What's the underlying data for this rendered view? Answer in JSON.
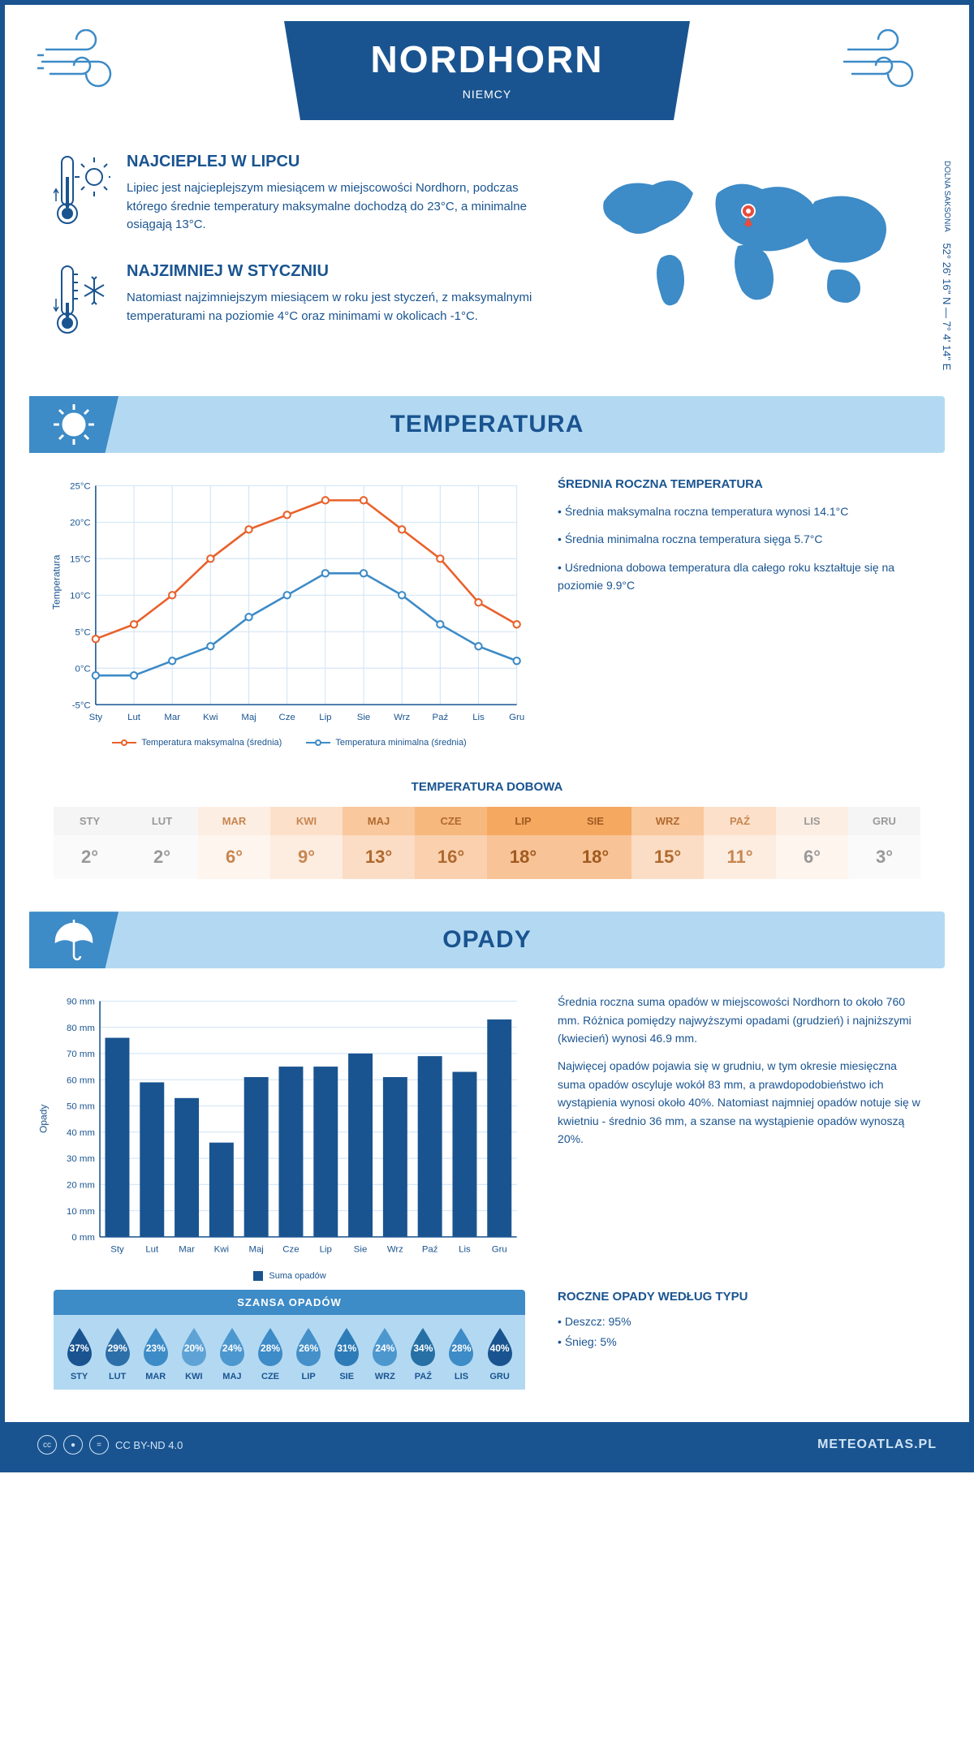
{
  "header": {
    "city": "NORDHORN",
    "country": "NIEMCY"
  },
  "coords": {
    "region": "DOLNA SAKSONIA",
    "lat": "52° 26' 16\" N",
    "lon": "7° 4' 14\" E"
  },
  "warmest": {
    "title": "NAJCIEPLEJ W LIPCU",
    "text": "Lipiec jest najcieplejszym miesiącem w miejscowości Nordhorn, podczas którego średnie temperatury maksymalne dochodzą do 23°C, a minimalne osiągają 13°C."
  },
  "coldest": {
    "title": "NAJZIMNIEJ W STYCZNIU",
    "text": "Natomiast najzimniejszym miesiącem w roku jest styczeń, z maksymalnymi temperaturami na poziomie 4°C oraz minimami w okolicach -1°C."
  },
  "temp_section_title": "TEMPERATURA",
  "temp_chart": {
    "months": [
      "Sty",
      "Lut",
      "Mar",
      "Kwi",
      "Maj",
      "Cze",
      "Lip",
      "Sie",
      "Wrz",
      "Paź",
      "Lis",
      "Gru"
    ],
    "max": [
      4,
      6,
      10,
      15,
      19,
      21,
      23,
      23,
      19,
      15,
      9,
      6
    ],
    "min": [
      -1,
      -1,
      1,
      3,
      7,
      10,
      13,
      13,
      10,
      6,
      3,
      1
    ],
    "max_color": "#e8622c",
    "min_color": "#3d8bc7",
    "ylabel": "Temperatura",
    "ymin": -5,
    "ymax": 25,
    "ystep": 5,
    "legend_max": "Temperatura maksymalna (średnia)",
    "legend_min": "Temperatura minimalna (średnia)",
    "grid_color": "#d0e4f5"
  },
  "temp_summary": {
    "title": "ŚREDNIA ROCZNA TEMPERATURA",
    "p1": "• Średnia maksymalna roczna temperatura wynosi 14.1°C",
    "p2": "• Średnia minimalna roczna temperatura sięga 5.7°C",
    "p3": "• Uśredniona dobowa temperatura dla całego roku kształtuje się na poziomie 9.9°C"
  },
  "daily": {
    "title": "TEMPERATURA DOBOWA",
    "months": [
      "STY",
      "LUT",
      "MAR",
      "KWI",
      "MAJ",
      "CZE",
      "LIP",
      "SIE",
      "WRZ",
      "PAŹ",
      "LIS",
      "GRU"
    ],
    "values": [
      "2°",
      "2°",
      "6°",
      "9°",
      "13°",
      "16°",
      "18°",
      "18°",
      "15°",
      "11°",
      "6°",
      "3°"
    ],
    "bg_colors": [
      "#f5f5f5",
      "#f5f5f5",
      "#fdeee3",
      "#fce0ca",
      "#f9c89d",
      "#f7b87e",
      "#f5a860",
      "#f5a860",
      "#f9c89d",
      "#fce0ca",
      "#fdeee3",
      "#f5f5f5"
    ],
    "val_bg_colors": [
      "#fafafa",
      "#fafafa",
      "#fef5ee",
      "#fdece0",
      "#fbdcc4",
      "#fad0ae",
      "#f8c397",
      "#f8c397",
      "#fbdcc4",
      "#fdece0",
      "#fef5ee",
      "#fafafa"
    ],
    "text_colors": [
      "#999",
      "#999",
      "#c78650",
      "#c78650",
      "#b06a2f",
      "#b06a2f",
      "#a05a1f",
      "#a05a1f",
      "#b06a2f",
      "#c78650",
      "#999",
      "#999"
    ]
  },
  "precip_section_title": "OPADY",
  "precip_chart": {
    "months": [
      "Sty",
      "Lut",
      "Mar",
      "Kwi",
      "Maj",
      "Cze",
      "Lip",
      "Sie",
      "Wrz",
      "Paź",
      "Lis",
      "Gru"
    ],
    "values": [
      76,
      59,
      53,
      36,
      61,
      65,
      65,
      70,
      61,
      69,
      63,
      83
    ],
    "color": "#1a5490",
    "ylabel": "Opady",
    "ymin": 0,
    "ymax": 90,
    "ystep": 10,
    "legend": "Suma opadów",
    "grid_color": "#d0e4f5"
  },
  "precip_text": {
    "p1": "Średnia roczna suma opadów w miejscowości Nordhorn to około 760 mm. Różnica pomiędzy najwyższymi opadami (grudzień) i najniższymi (kwiecień) wynosi 46.9 mm.",
    "p2": "Najwięcej opadów pojawia się w grudniu, w tym okresie miesięczna suma opadów oscyluje wokół 83 mm, a prawdopodobieństwo ich wystąpienia wynosi około 40%. Natomiast najmniej opadów notuje się w kwietniu - średnio 36 mm, a szanse na wystąpienie opadów wynoszą 20%."
  },
  "chance": {
    "title": "SZANSA OPADÓW",
    "months": [
      "STY",
      "LUT",
      "MAR",
      "KWI",
      "MAJ",
      "CZE",
      "LIP",
      "SIE",
      "WRZ",
      "PAŹ",
      "LIS",
      "GRU"
    ],
    "pct": [
      "37%",
      "29%",
      "23%",
      "20%",
      "24%",
      "28%",
      "26%",
      "31%",
      "24%",
      "34%",
      "28%",
      "40%"
    ],
    "colors": [
      "#1a5490",
      "#2d6fa8",
      "#3d8bc7",
      "#5fa3d6",
      "#4d97cf",
      "#3d8bc7",
      "#4590c9",
      "#2d7cb8",
      "#4d97cf",
      "#2670a5",
      "#3d8bc7",
      "#1a5490"
    ]
  },
  "precip_type": {
    "title": "ROCZNE OPADY WEDŁUG TYPU",
    "p1": "• Deszcz: 95%",
    "p2": "• Śnieg: 5%"
  },
  "footer": {
    "license": "CC BY-ND 4.0",
    "site": "METEOATLAS.PL"
  }
}
